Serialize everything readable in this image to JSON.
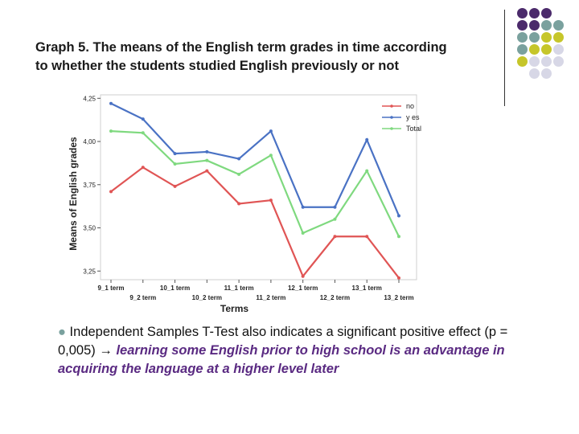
{
  "title_line1": "Graph 5. The means of the English term grades in time according",
  "title_line2": "to whether the students studied English previously or not",
  "chart_data": {
    "type": "line",
    "xlabel": "Terms",
    "ylabel": "Means of English grades",
    "ylim": [
      3.2,
      4.27
    ],
    "yticks": [
      "3,25",
      "3,50",
      "3,75",
      "4,00",
      "4,25"
    ],
    "ytick_values": [
      3.25,
      3.5,
      3.75,
      4.0,
      4.25
    ],
    "categories": [
      "9_1 term",
      "9_2 term",
      "10_1 term",
      "10_2 term",
      "11_1 term",
      "11_2 term",
      "12_1 term",
      "12_2 term",
      "13_1 term",
      "13_2 term"
    ],
    "series": [
      {
        "name": "no",
        "color": "#e05555",
        "values": [
          3.71,
          3.85,
          3.74,
          3.83,
          3.64,
          3.66,
          3.22,
          3.45,
          3.45,
          3.21
        ]
      },
      {
        "name": "y es",
        "color": "#4a72c4",
        "values": [
          4.22,
          4.13,
          3.93,
          3.94,
          3.9,
          4.06,
          3.62,
          3.62,
          4.01,
          3.57
        ]
      },
      {
        "name": "Total",
        "color": "#7fd97f",
        "values": [
          4.06,
          4.05,
          3.87,
          3.89,
          3.81,
          3.92,
          3.47,
          3.55,
          3.83,
          3.45
        ]
      }
    ],
    "legend_position": "top-right",
    "grid": false
  },
  "bullet": {
    "symbol": "●",
    "text1": " Independent Samples T-Test also indicates a significant positive effect (p = 0,005) → ",
    "emph": "learning some English prior to high school is an advantage in acquiring the language at a higher level later"
  },
  "decor_colors": {
    "purple": "#4b2a6b",
    "teal": "#7aa19e",
    "olive": "#c6c62a",
    "lavender": "#d7d7e6"
  }
}
